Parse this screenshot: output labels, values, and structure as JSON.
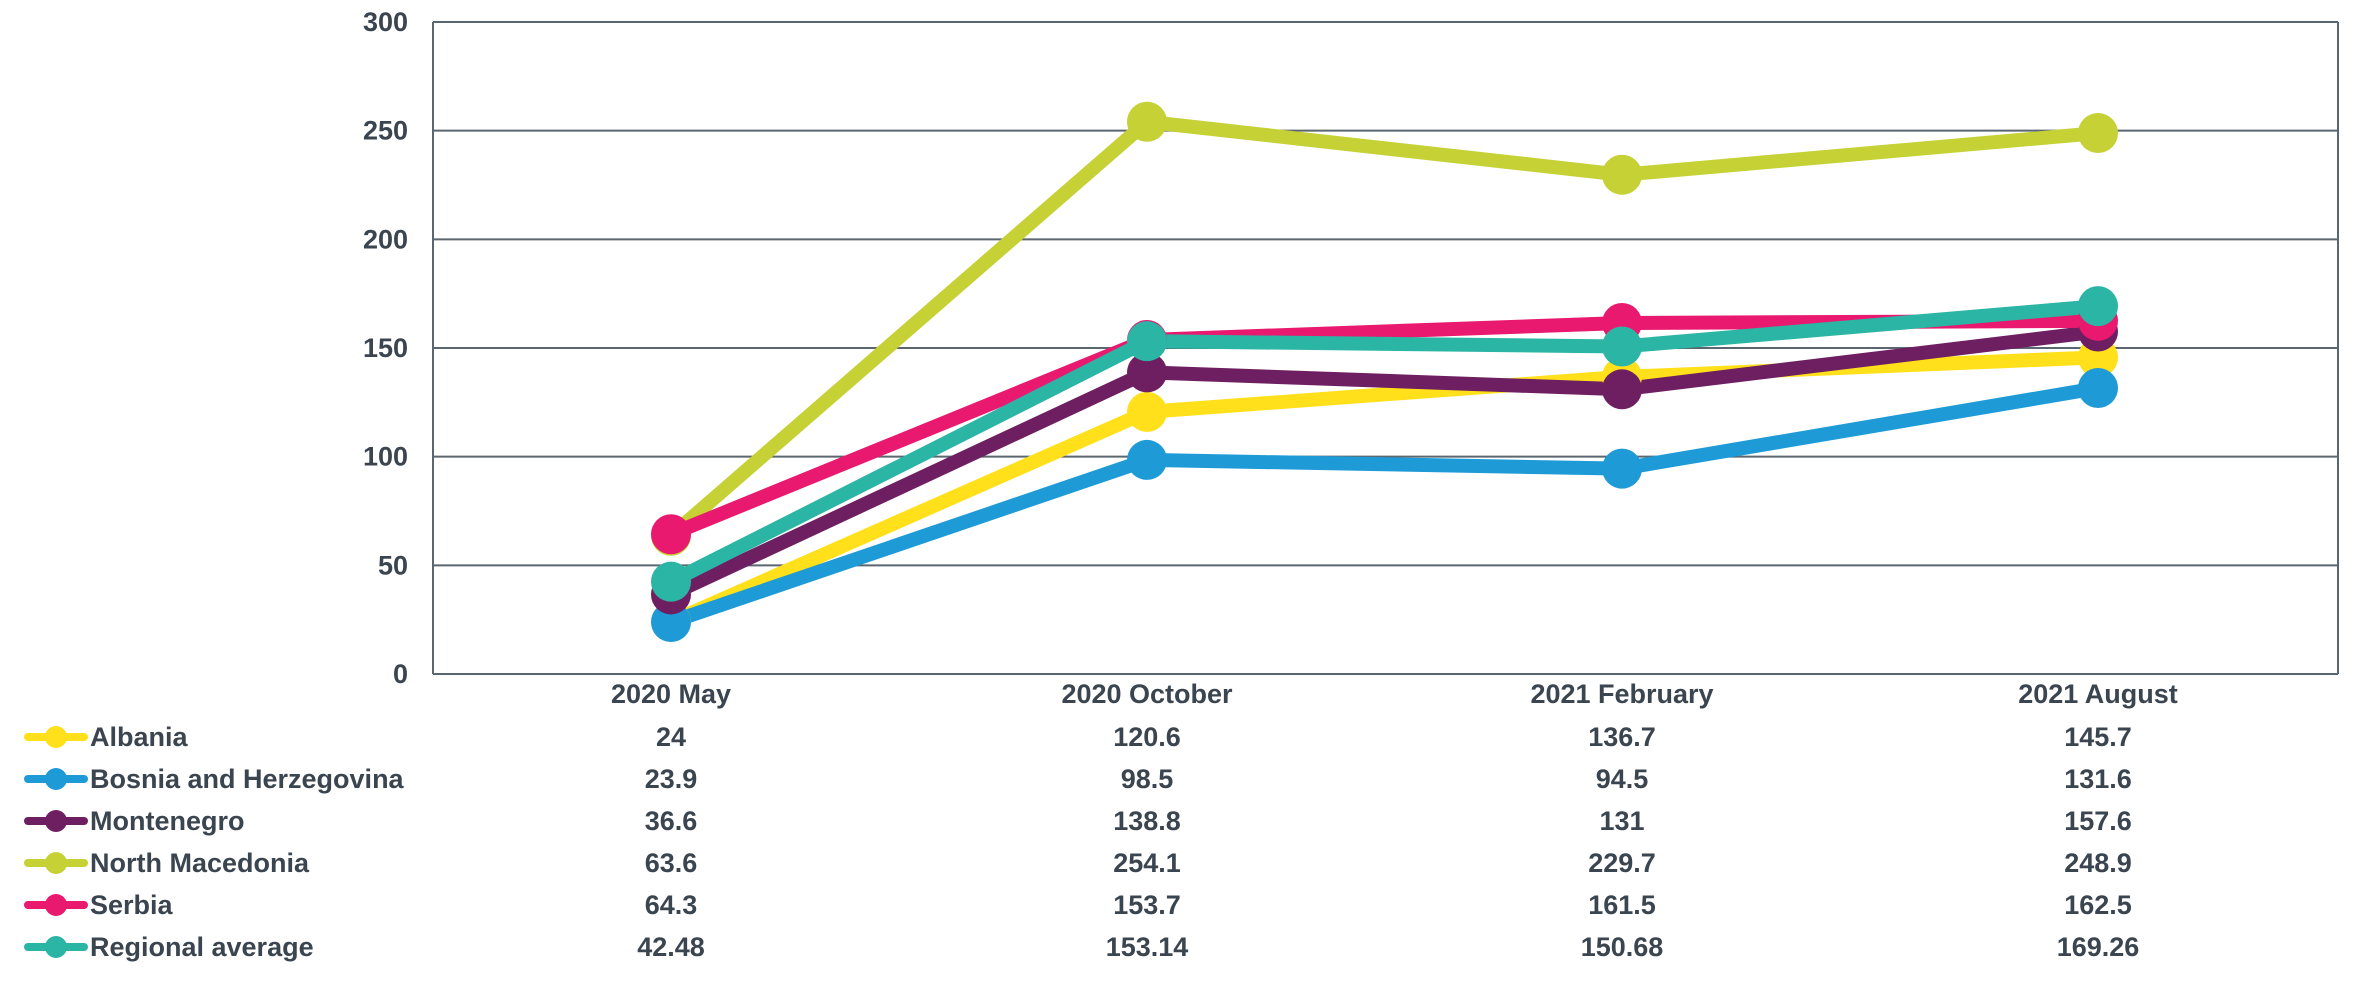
{
  "chart_data": {
    "type": "line",
    "title": "",
    "xlabel": "",
    "ylabel": "",
    "categories": [
      "2020 May",
      "2020 October",
      "2021 February",
      "2021 August"
    ],
    "ylim": [
      0,
      300
    ],
    "yticks": [
      0,
      50,
      100,
      150,
      200,
      250,
      300
    ],
    "grid": true,
    "legend_position": "bottom-left, with data table",
    "series": [
      {
        "name": "Albania",
        "color": "#FFE01B",
        "values": [
          24,
          120.6,
          136.7,
          145.7
        ],
        "labels": [
          "24",
          "120.6",
          "136.7",
          "145.7"
        ]
      },
      {
        "name": "Bosnia and Herzegovina",
        "color": "#1E9BD7",
        "values": [
          23.9,
          98.5,
          94.5,
          131.6
        ],
        "labels": [
          "23.9",
          "98.5",
          "94.5",
          "131.6"
        ]
      },
      {
        "name": "Montenegro",
        "color": "#6E1F61",
        "values": [
          36.6,
          138.8,
          131,
          157.6
        ],
        "labels": [
          "36.6",
          "138.8",
          "131",
          "157.6"
        ]
      },
      {
        "name": "North Macedonia",
        "color": "#C5D134",
        "values": [
          63.6,
          254.1,
          229.7,
          248.9
        ],
        "labels": [
          "63.6",
          "254.1",
          "229.7",
          "248.9"
        ]
      },
      {
        "name": "Serbia",
        "color": "#E8196E",
        "values": [
          64.3,
          153.7,
          161.5,
          162.5
        ],
        "labels": [
          "64.3",
          "153.7",
          "161.5",
          "162.5"
        ]
      },
      {
        "name": "Regional average",
        "color": "#2BB5A5",
        "values": [
          42.48,
          153.14,
          150.68,
          169.26
        ],
        "labels": [
          "42.48",
          "153.14",
          "150.68",
          "169.26"
        ]
      }
    ]
  }
}
